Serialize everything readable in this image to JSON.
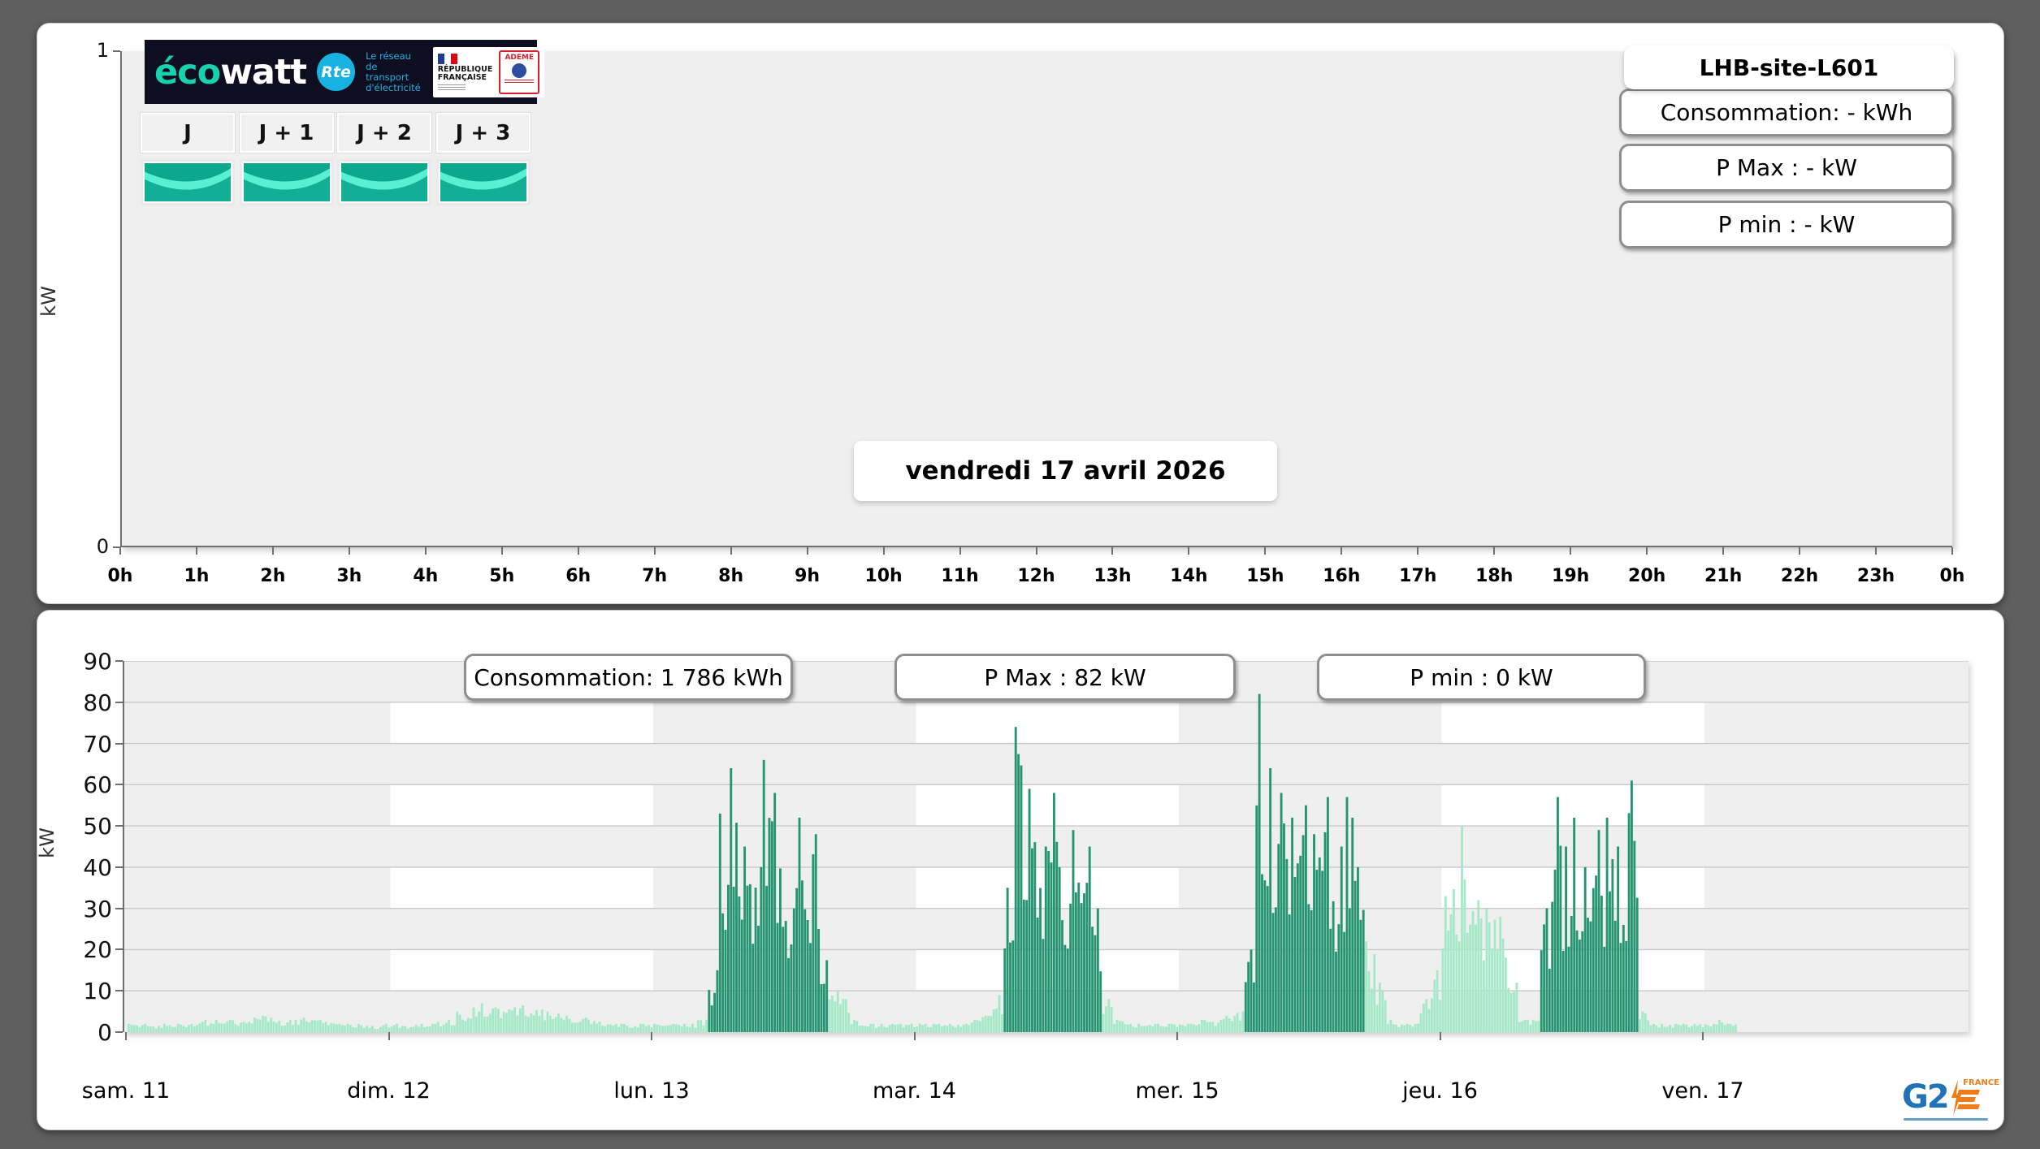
{
  "header": {
    "ecowatt": {
      "brand_eco": "éco",
      "brand_watt": "watt",
      "rte_abbr": "Rte",
      "rte_tagline": "Le réseau\nde transport\nd'électricité",
      "republique": "RÉPUBLIQUE\nFRANÇAISE",
      "ademe": "ADEME"
    },
    "day_tabs": [
      {
        "label": "J",
        "signal": "vert"
      },
      {
        "label": "J + 1",
        "signal": "vert"
      },
      {
        "label": "J + 2",
        "signal": "vert"
      },
      {
        "label": "J + 3",
        "signal": "vert"
      }
    ]
  },
  "today_panel": {
    "site_name": "LHB-site-L601",
    "stats": [
      {
        "label": "Consommation: - kWh"
      },
      {
        "label": "P Max :  - kW"
      },
      {
        "label": "P min : - kW"
      }
    ],
    "date_label": "vendredi 17 avril 2026",
    "ylabel": "kW"
  },
  "week_panel": {
    "stats": [
      {
        "label": "Consommation: 1 786 kWh"
      },
      {
        "label": "P Max :  82 kW"
      },
      {
        "label": "P min : 0 kW"
      }
    ],
    "ylabel": "kW",
    "g2e": {
      "name": "G2",
      "country": "FRANCE"
    }
  },
  "chart_data": [
    {
      "type": "bar",
      "title": "vendredi 17 avril 2026",
      "ylabel": "kW",
      "ylim": [
        0,
        1
      ],
      "yticks": [
        0,
        1
      ],
      "x_ticks": [
        "0h",
        "1h",
        "2h",
        "3h",
        "4h",
        "5h",
        "6h",
        "7h",
        "8h",
        "9h",
        "10h",
        "11h",
        "12h",
        "13h",
        "14h",
        "15h",
        "16h",
        "17h",
        "18h",
        "19h",
        "20h",
        "21h",
        "22h",
        "23h",
        "0h"
      ],
      "values": [],
      "grid": false,
      "legend": "none"
    },
    {
      "type": "bar",
      "ylabel": "kW",
      "ylim": [
        0,
        90
      ],
      "yticks": [
        0,
        10,
        20,
        30,
        40,
        50,
        60,
        70,
        80,
        90
      ],
      "grid": true,
      "legend": "none",
      "displayed_total_consumption_kwh": "1 786",
      "displayed_p_max_kw": 82,
      "displayed_p_min_kw": 0,
      "bar_colors": {
        "standby": "#a6e9c9",
        "active": "#259471"
      },
      "background": {
        "base": "#efefef",
        "checker_white_day_columns": [
          1,
          3,
          5
        ],
        "checker_white_kw_bands": [
          [
            10,
            20
          ],
          [
            30,
            40
          ],
          [
            50,
            60
          ],
          [
            70,
            80
          ]
        ]
      },
      "x_resolution": "hourly estimates (kW), phase 1 = dark-green active period",
      "days": [
        {
          "label": "sam. 11",
          "values": [
            2,
            2,
            1.5,
            2,
            2,
            2,
            2.5,
            3,
            3,
            3,
            2.5,
            3.5,
            4,
            3.5,
            3,
            3,
            3.5,
            3,
            2.5,
            2,
            2,
            2,
            1.5,
            2
          ],
          "phase": [
            0,
            0,
            0,
            0,
            0,
            0,
            0,
            0,
            0,
            0,
            0,
            0,
            0,
            0,
            0,
            0,
            0,
            0,
            0,
            0,
            0,
            0,
            0,
            0
          ]
        },
        {
          "label": "dim. 12",
          "values": [
            2,
            1.5,
            2,
            2,
            2.5,
            3,
            5,
            6,
            7,
            6,
            5.5,
            6,
            6.5,
            5.5,
            5,
            4.5,
            4,
            3.5,
            3,
            2.5,
            2,
            2,
            2,
            2
          ],
          "phase": [
            0,
            0,
            0,
            0,
            0,
            0,
            0,
            0,
            0,
            0,
            0,
            0,
            0,
            0,
            0,
            0,
            0,
            0,
            0,
            0,
            0,
            0,
            0,
            0
          ]
        },
        {
          "label": "lun. 13",
          "values": [
            2,
            2,
            2,
            2,
            3,
            15,
            53,
            64,
            45,
            40,
            66,
            58,
            30,
            52,
            48,
            25,
            10,
            8,
            3,
            2,
            2,
            2,
            2,
            2
          ],
          "phase": [
            0,
            0,
            0,
            0,
            0,
            1,
            1,
            1,
            1,
            1,
            1,
            1,
            1,
            1,
            1,
            1,
            0,
            0,
            0,
            0,
            0,
            0,
            0,
            0
          ]
        },
        {
          "label": "mar. 14",
          "values": [
            2,
            2,
            2,
            2,
            2,
            3,
            4,
            9,
            35,
            74,
            59,
            45,
            58,
            40,
            49,
            45,
            30,
            8,
            3,
            2,
            2,
            2,
            2,
            2
          ],
          "phase": [
            0,
            0,
            0,
            0,
            0,
            0,
            0,
            0,
            1,
            1,
            1,
            1,
            1,
            1,
            1,
            1,
            1,
            0,
            0,
            0,
            0,
            0,
            0,
            0
          ]
        },
        {
          "label": "mer. 15",
          "values": [
            2,
            2,
            3,
            3,
            4,
            5,
            20,
            82,
            64,
            58,
            52,
            55,
            48,
            57,
            45,
            57,
            40,
            22,
            12,
            3,
            2,
            2,
            8,
            15
          ],
          "phase": [
            0,
            0,
            0,
            0,
            0,
            0,
            1,
            1,
            1,
            1,
            1,
            1,
            1,
            1,
            1,
            1,
            1,
            0,
            0,
            0,
            0,
            0,
            0,
            0
          ]
        },
        {
          "label": "jeu. 16",
          "values": [
            33,
            50,
            37,
            32,
            30,
            28,
            12,
            3,
            3,
            30,
            57,
            45,
            52,
            40,
            49,
            52,
            45,
            61,
            5,
            2,
            2,
            2,
            2,
            2
          ],
          "phase": [
            0,
            0,
            0,
            0,
            0,
            0,
            0,
            0,
            0,
            1,
            1,
            1,
            1,
            1,
            1,
            1,
            1,
            1,
            0,
            0,
            0,
            0,
            0,
            0
          ]
        },
        {
          "label": "ven. 17",
          "values": [
            2,
            3,
            2,
            null,
            null,
            null,
            null,
            null,
            null,
            null,
            null,
            null,
            null,
            null,
            null,
            null,
            null,
            null,
            null,
            null,
            null,
            null,
            null,
            null
          ],
          "phase": [
            0,
            0,
            0,
            0,
            0,
            0,
            0,
            0,
            0,
            0,
            0,
            0,
            0,
            0,
            0,
            0,
            0,
            0,
            0,
            0,
            0,
            0,
            0,
            0
          ]
        }
      ]
    }
  ]
}
